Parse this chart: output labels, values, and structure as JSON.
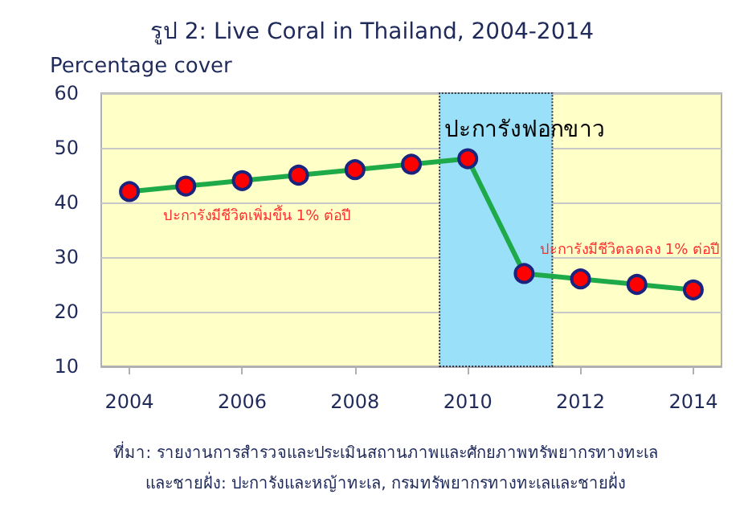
{
  "chart_data": {
    "type": "line",
    "title": "รูป 2: Live Coral in Thailand, 2004-2014",
    "ylabel": "Percentage cover",
    "x": [
      2004,
      2005,
      2006,
      2007,
      2008,
      2009,
      2010,
      2011,
      2012,
      2013,
      2014
    ],
    "series": [
      {
        "color": "#1faa4a",
        "values": [
          42,
          43,
          44,
          45,
          46,
          47,
          48,
          27,
          26,
          25,
          24
        ]
      }
    ],
    "xlim": [
      2003.5,
      2014.5
    ],
    "xticks": [
      2004,
      2006,
      2008,
      2010,
      2012,
      2014
    ],
    "ylim": [
      10,
      60
    ],
    "yticks": [
      10,
      20,
      30,
      40,
      50,
      60
    ],
    "grid": "y",
    "marker": "circle",
    "line_style": "solid",
    "bands": [
      {
        "axis": "x",
        "from": 2009.5,
        "to": 2011.5,
        "label": "ปะการังฟอกขาว",
        "color": "#99e0f8"
      }
    ],
    "annotations": [
      "ปะการังมีชีวิตเพิ่มขึ้น 1% ต่อปี",
      "ปะการังมีชีวิตลดลง 1% ต่อปี",
      "ที่มา: รายงานการสำรวจและประเมินสถานภาพและศักยภาพทรัพยากรทางทะเล\nและชายฝั่ง: ปะการังและหญ้าทะเล, กรมทรัพยากรทางทะเลและชายฝั่ง"
    ]
  }
}
